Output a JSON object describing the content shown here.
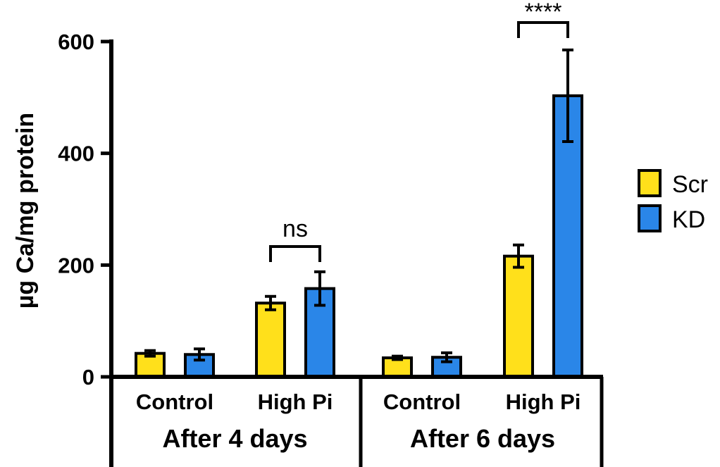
{
  "chart_data": {
    "type": "bar",
    "ylabel": "µg Ca/mg protein",
    "ylim": [
      0,
      600
    ],
    "yticks": [
      0,
      200,
      400,
      600
    ],
    "groups": [
      {
        "label": "After 4 days",
        "categories": [
          "Control",
          "High Pi"
        ]
      },
      {
        "label": "After 6 days",
        "categories": [
          "Control",
          "High Pi"
        ]
      }
    ],
    "categories": [
      "Control",
      "High Pi",
      "Control",
      "High Pi"
    ],
    "series": [
      {
        "name": "Scr",
        "color": "#FFE01B",
        "values": [
          42,
          132,
          34,
          216
        ],
        "errors": [
          5,
          12,
          3,
          20
        ]
      },
      {
        "name": "KD",
        "color": "#2A86E8",
        "values": [
          40,
          158,
          35,
          503
        ],
        "errors": [
          10,
          30,
          8,
          82
        ]
      }
    ],
    "annotations": [
      {
        "text": "ns",
        "category_index": 1
      },
      {
        "text": "****",
        "category_index": 3
      }
    ],
    "legend_position": "right",
    "grid": false
  }
}
